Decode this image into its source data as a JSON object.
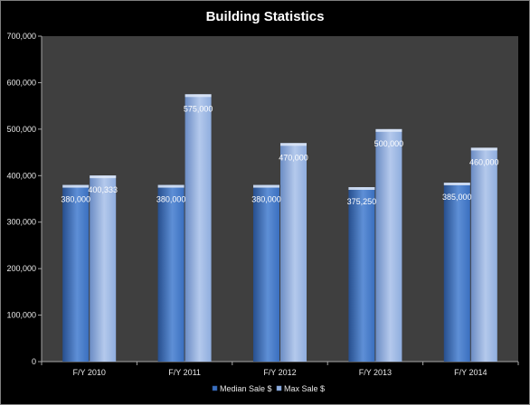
{
  "chart_data": {
    "type": "bar",
    "title": "Building Statistics",
    "xlabel": "",
    "ylabel": "",
    "categories": [
      "F/Y 2010",
      "F/Y 2011",
      "F/Y 2012",
      "F/Y 2013",
      "F/Y 2014"
    ],
    "series": [
      {
        "name": "Median Sale $",
        "values": [
          380000,
          380000,
          380000,
          375250,
          385000
        ],
        "labels": [
          "380,000",
          "380,000",
          "380,000",
          "375,250",
          "385,000"
        ],
        "color": "#3a6fbf",
        "colorLight": "#5e8fd6",
        "colorDark": "#274f8e"
      },
      {
        "name": "Max Sale $",
        "values": [
          400333,
          575000,
          470000,
          500000,
          460000
        ],
        "labels": [
          "400,333",
          "575,000",
          "470,000",
          "500,000",
          "460,000"
        ],
        "color": "#8fadde",
        "colorLight": "#b4c9ec",
        "colorDark": "#6b8cc4"
      }
    ],
    "ylim": [
      0,
      700000
    ],
    "yticks": [
      0,
      100000,
      200000,
      300000,
      400000,
      500000,
      600000,
      700000
    ],
    "ytick_labels": [
      "0",
      "100,000",
      "200,000",
      "300,000",
      "400,000",
      "500,000",
      "600,000",
      "700,000"
    ],
    "grid": false,
    "legend_position": "bottom",
    "colors": {
      "background": "#000000",
      "plot_area": "#3f3f3f",
      "axis": "#a6a6a6",
      "text": "#e8e8e8"
    }
  }
}
